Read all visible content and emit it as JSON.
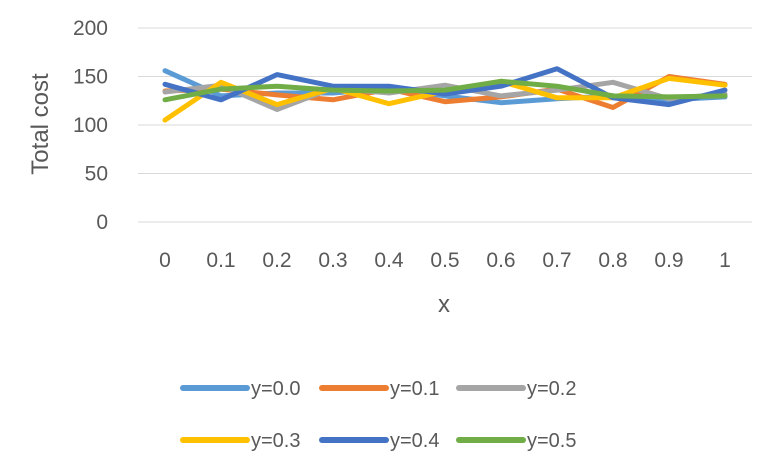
{
  "chart_data": {
    "type": "line",
    "title": "",
    "xlabel": "x",
    "ylabel": "Total cost",
    "x": [
      "0",
      "0.1",
      "0.2",
      "0.3",
      "0.4",
      "0.5",
      "0.6",
      "0.7",
      "0.8",
      "0.9",
      "1"
    ],
    "ylim": [
      0,
      200
    ],
    "yticks": [
      "0",
      "50",
      "100",
      "150",
      "200"
    ],
    "grid": true,
    "legend_position": "bottom",
    "series": [
      {
        "name": "y=0.0",
        "color": "#5b9bd5",
        "values": [
          156,
          130,
          133,
          133,
          138,
          130,
          123,
          127,
          130,
          126,
          129
        ]
      },
      {
        "name": "y=0.1",
        "color": "#ed7d31",
        "values": [
          135,
          137,
          131,
          126,
          137,
          124,
          129,
          137,
          118,
          150,
          142
        ]
      },
      {
        "name": "y=0.2",
        "color": "#a5a5a5",
        "values": [
          134,
          141,
          116,
          138,
          133,
          141,
          130,
          136,
          144,
          127,
          132
        ]
      },
      {
        "name": "y=0.3",
        "color": "#ffc000",
        "values": [
          105,
          144,
          121,
          138,
          122,
          135,
          145,
          128,
          128,
          148,
          141
        ]
      },
      {
        "name": "y=0.4",
        "color": "#4472c4",
        "values": [
          142,
          126,
          152,
          140,
          140,
          132,
          140,
          158,
          128,
          121,
          136
        ]
      },
      {
        "name": "y=0.5",
        "color": "#70ad47",
        "values": [
          126,
          137,
          140,
          136,
          135,
          136,
          145,
          140,
          130,
          129,
          130
        ]
      }
    ]
  }
}
